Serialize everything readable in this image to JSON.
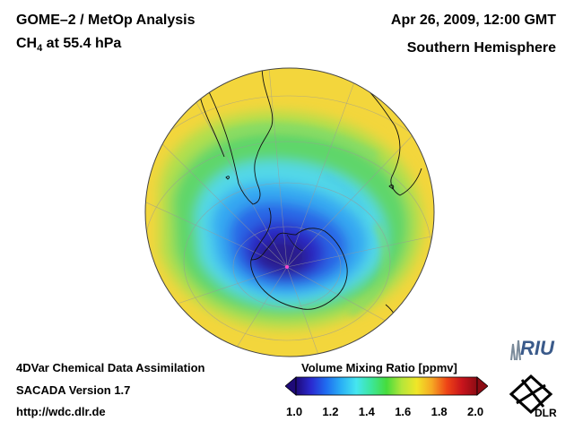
{
  "header": {
    "title_line1": "GOME–2 / MetOp Analysis",
    "species": "CH",
    "species_sub": "4",
    "level": " at 55.4 hPa",
    "datetime": "Apr 26, 2009, 12:00 GMT",
    "region": "Southern Hemisphere"
  },
  "footer": {
    "method": "4DVar Chemical Data Assimilation",
    "version": "SACADA Version 1.7",
    "url": "http://wdc.dlr.de"
  },
  "colorbar": {
    "title": "Volume Mixing Ratio [ppmv]",
    "min": 1.0,
    "max": 2.0,
    "ticks": [
      "1.0",
      "1.2",
      "1.4",
      "1.6",
      "1.8",
      "2.0"
    ],
    "colors": [
      "#1e0a78",
      "#2a2ad0",
      "#1f6cf0",
      "#2ab0f5",
      "#45e6f0",
      "#3ce69a",
      "#46dc3c",
      "#b4e63a",
      "#f0e628",
      "#f6a823",
      "#ee4416",
      "#c8141c",
      "#8c0c14"
    ]
  },
  "logos": {
    "riu": "RIU",
    "dlr": "DLR"
  },
  "map_colors": {
    "outer": "#f3d63c",
    "green": "#64d46a",
    "cyan": "#50d8ec",
    "blue": "#2a6ce8",
    "deep": "#2a1c9c"
  }
}
